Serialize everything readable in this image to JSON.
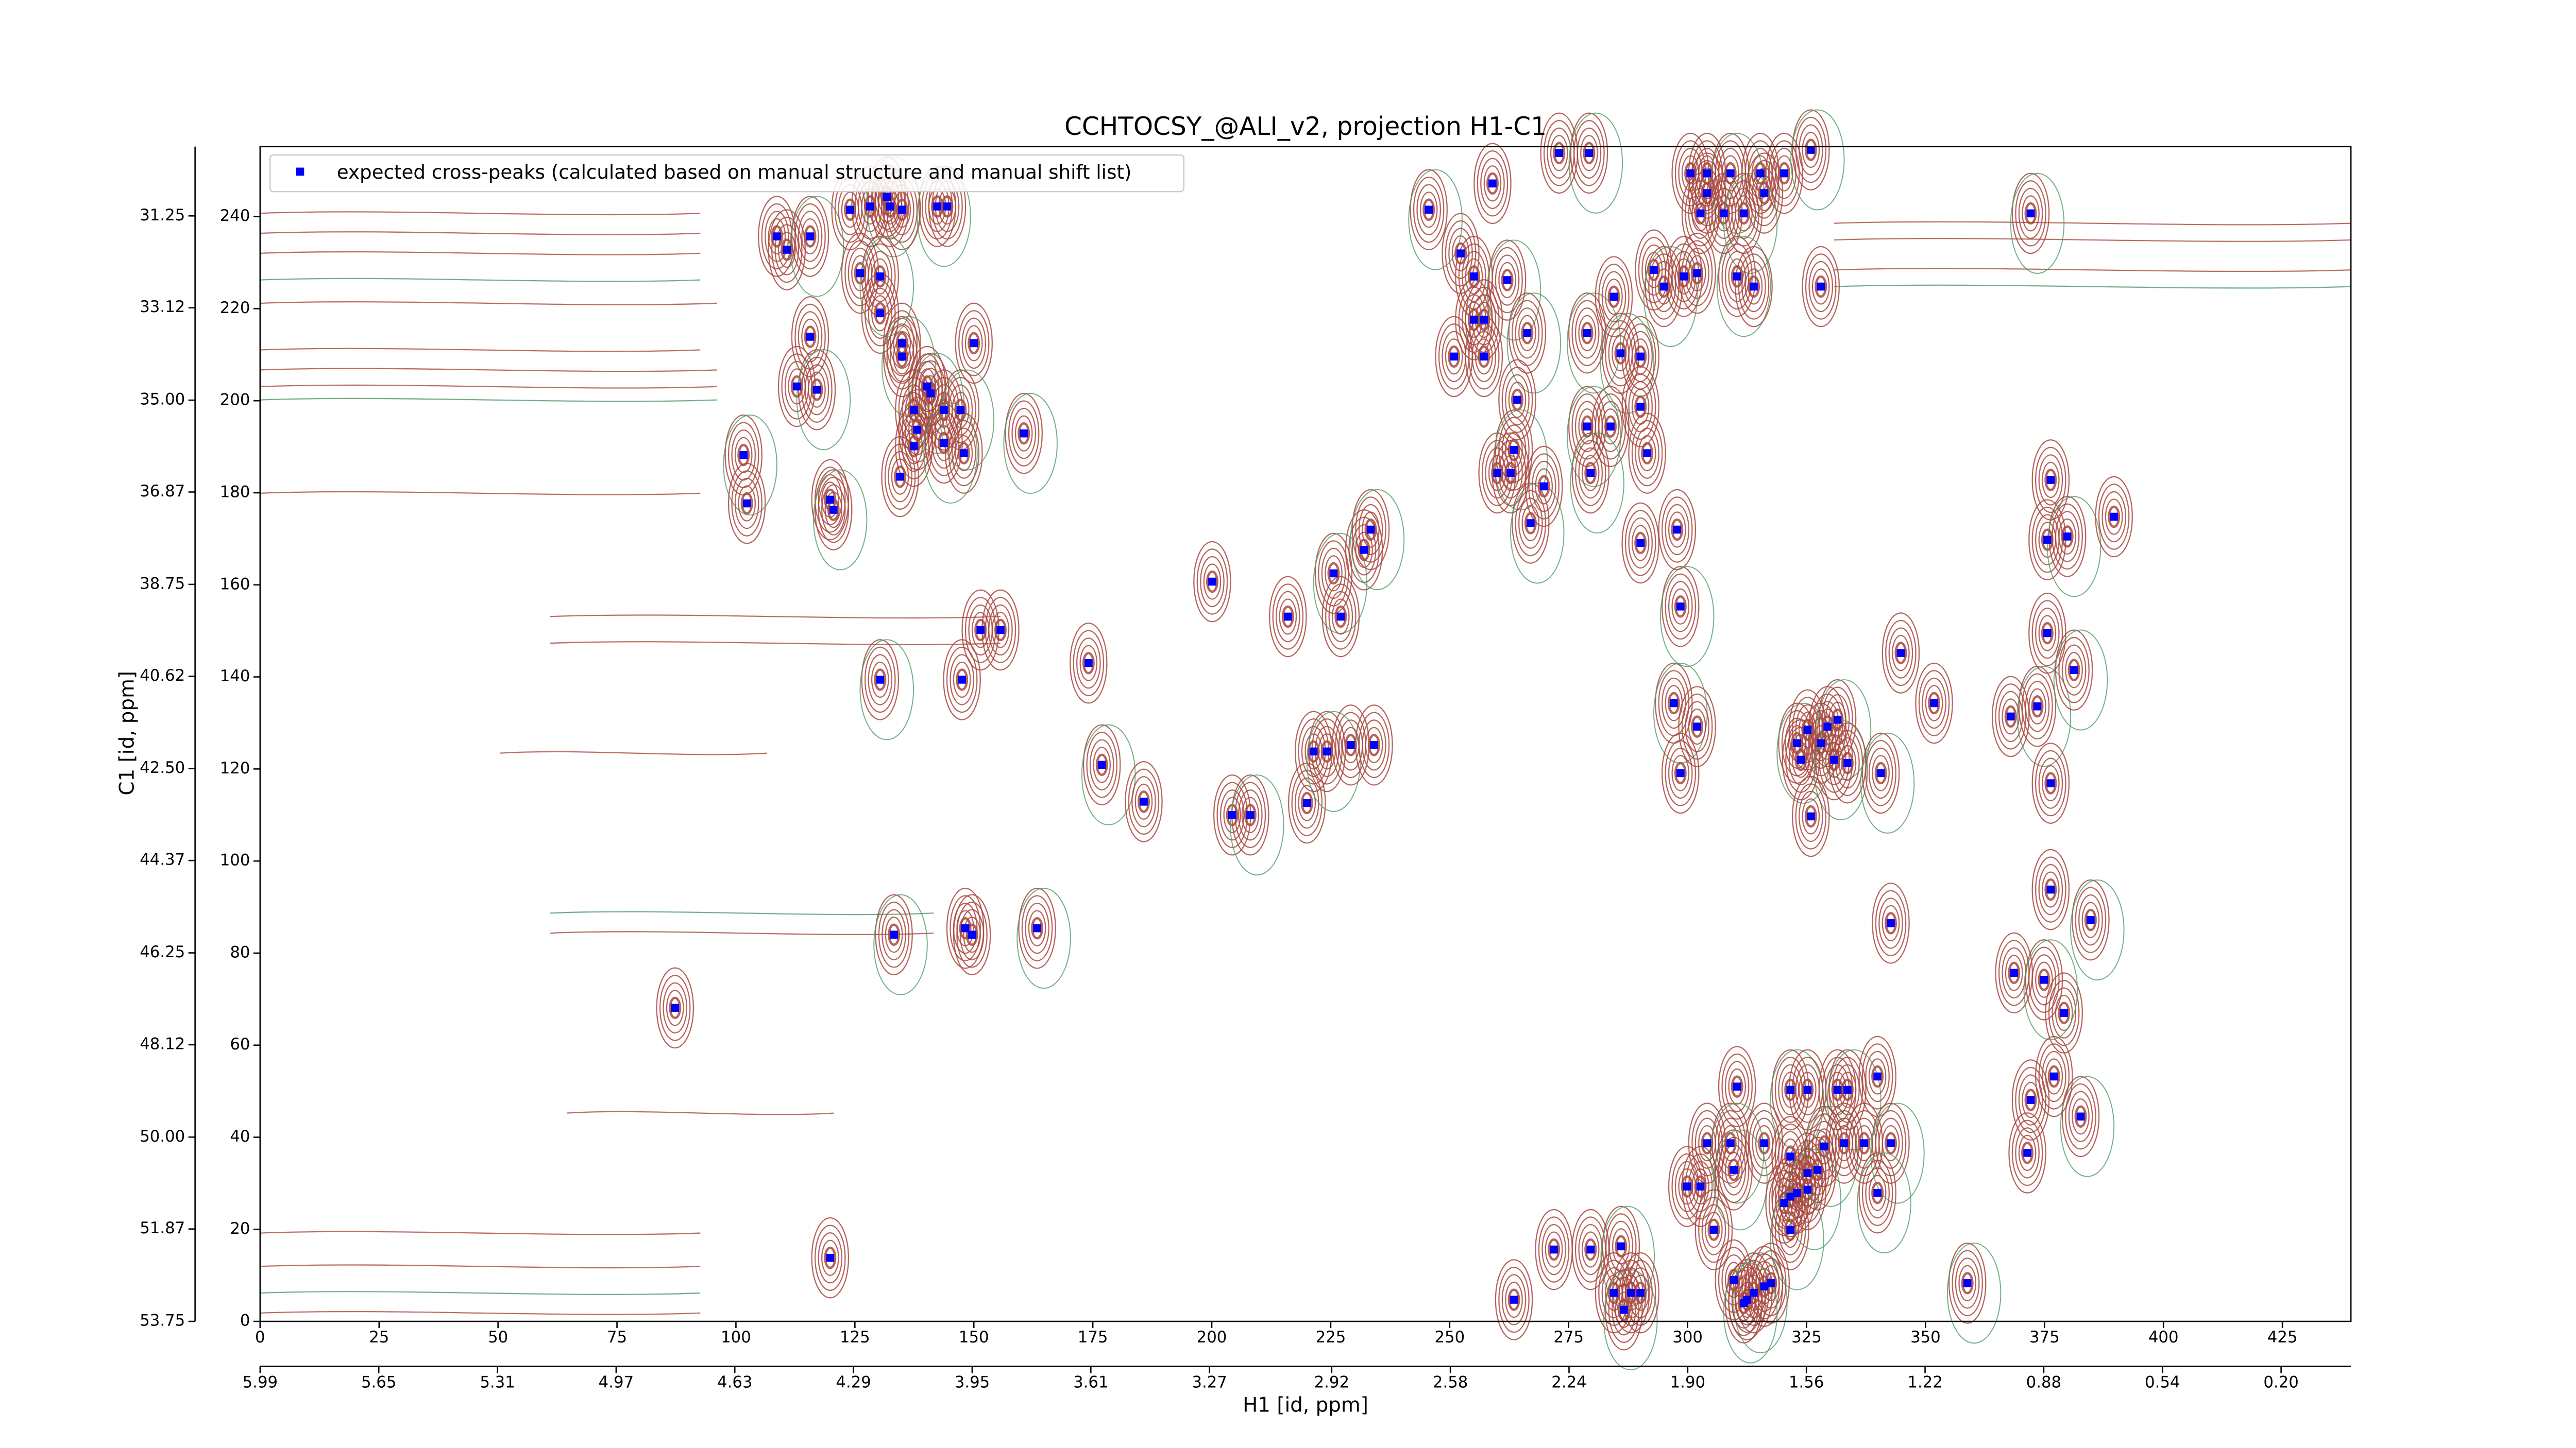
{
  "chart_data": {
    "type": "scatter",
    "title": "CCHTOCSY_@ALI_v2, projection H1-C1",
    "xlabel": "H1 [id, ppm]",
    "ylabel": "C1 [id, ppm]",
    "xlim": [
      0,
      439.4
    ],
    "xticks": [
      0,
      25,
      50,
      75,
      100,
      125,
      150,
      175,
      200,
      225,
      250,
      275,
      300,
      325,
      350,
      375,
      400,
      425
    ],
    "x2lim": [
      5.99,
      0.0
    ],
    "x2ticks": [
      5.99,
      5.65,
      5.31,
      4.97,
      4.63,
      4.29,
      3.95,
      3.61,
      3.27,
      2.92,
      2.58,
      2.24,
      {
        "value": 1.9,
        "label": "1.90"
      },
      1.56,
      1.22,
      0.88,
      0.54,
      {
        "value": 0.2,
        "label": "0.20"
      }
    ],
    "ylim": [
      0,
      255.2
    ],
    "yticks": [
      0,
      20,
      40,
      60,
      80,
      100,
      120,
      140,
      160,
      180,
      200,
      220,
      240
    ],
    "y2lim": [
      53.75,
      29.84
    ],
    "y2ticks": [
      53.75,
      51.87,
      {
        "value": 50,
        "label": "50.00"
      },
      48.12,
      46.25,
      44.37,
      {
        "value": 42.5,
        "label": "42.50"
      },
      40.62,
      38.75,
      36.87,
      {
        "value": 35,
        "label": "35.00"
      },
      33.12,
      31.25
    ],
    "legend": "upper left",
    "contour_colors": [
      "#a8483e",
      "#4f9a68"
    ],
    "series": [
      {
        "name": "expected cross-peaks (calculated based on manual structure and manual shift list)",
        "color": "#0000ff",
        "x": [
          101.6,
          102.3,
          119.8,
          120.5,
          108.6,
          110.7,
          115.6,
          124,
          128.2,
          131.7,
          132.4,
          134.9,
          142.3,
          144.4,
          126.1,
          130.3,
          115.6,
          112.8,
          117,
          130.3,
          134.9,
          134.9,
          150,
          140.2,
          140.9,
          137.4,
          143.7,
          147.2,
          138.1,
          137.4,
          143.7,
          147.9,
          134.5,
          160.5,
          200.1,
          216,
          225.6,
          227.1,
          232,
          233.4,
          151.4,
          155.6,
          130.3,
          147.5,
          174.1,
          176.9,
          185.7,
          204.3,
          208.1,
          220,
          221.4,
          224.2,
          229.2,
          234.1,
          133.2,
          148.2,
          149.6,
          163.3,
          87.2,
          119.8,
          245.6,
          259,
          273,
          279.3,
          300.6,
          304.1,
          309,
          315.3,
          320.3,
          325.9,
          302.7,
          307.6,
          311.8,
          304.1,
          316.1,
          372.1,
          252.3,
          255.1,
          262.1,
          255.1,
          257.2,
          266.3,
          250.9,
          257.2,
          278.9,
          284.5,
          292.9,
          295,
          299.2,
          302,
          310.4,
          313.9,
          328,
          285.9,
          290.1,
          264.2,
          278.9,
          283.8,
          290.1,
          263.5,
          260,
          262.8,
          267,
          269.8,
          291.5,
          279.6,
          290.1,
          297.8,
          298.5,
          344.8,
          351.8,
          297.1,
          302,
          298.5,
          323,
          325.2,
          329.4,
          331.5,
          323.8,
          328,
          330.8,
          333.6,
          325.9,
          340.6,
          342.7,
          367.9,
          373.5,
          375.6,
          376.3,
          381.2,
          376.3,
          375.6,
          379.8,
          389.6,
          376.3,
          384.7,
          379.1,
          368.6,
          374.9,
          372.1,
          371.4,
          382.6,
          377,
          310.4,
          321.6,
          325.2,
          331.5,
          333.6,
          339.9,
          304.1,
          309,
          316.1,
          321.6,
          328.7,
          332.9,
          337.1,
          342.7,
          299.9,
          302.7,
          309.7,
          325.2,
          327.3,
          339.9,
          321.6,
          323,
          325.2,
          320.3,
          305.5,
          321.6,
          309.7,
          312.5,
          313.9,
          316.1,
          317.5,
          311.8,
          271.9,
          279.6,
          286,
          288.1,
          284.5,
          286.6,
          290.1,
          263.5,
          358.8
        ],
        "y": [
          188.2,
          177.7,
          178.5,
          176.3,
          235.7,
          232.8,
          235.7,
          241.5,
          242.2,
          244.3,
          242.2,
          241.5,
          242.2,
          242.2,
          227.7,
          227,
          213.9,
          203.1,
          202.4,
          219,
          212.5,
          209.6,
          212.5,
          203.1,
          201.6,
          198,
          198,
          198,
          193.7,
          190.1,
          190.8,
          188.6,
          183.5,
          192.9,
          160.7,
          153.1,
          162.5,
          153.1,
          167.6,
          172,
          150.2,
          150.2,
          139.4,
          139.4,
          143,
          120.9,
          112.9,
          110,
          110,
          112.6,
          123.8,
          123.8,
          125.2,
          125.2,
          84,
          85.4,
          84,
          85.4,
          68.1,
          13.8,
          241.5,
          247.2,
          253.8,
          253.8,
          249.4,
          249.4,
          249.4,
          249.4,
          249.4,
          254.5,
          240.7,
          240.7,
          240.7,
          245.1,
          245.1,
          240.7,
          232,
          227,
          226.2,
          217.6,
          217.6,
          214.7,
          209.6,
          209.6,
          214.7,
          222.6,
          228.4,
          224.8,
          227,
          227.7,
          227,
          224.8,
          224.8,
          210.3,
          209.6,
          200.2,
          194.4,
          194.4,
          198.7,
          189.3,
          184.3,
          184.3,
          173.4,
          181.4,
          188.6,
          184.3,
          169.1,
          172,
          155.3,
          145.2,
          134.3,
          134.3,
          129.2,
          119.1,
          125.6,
          128.5,
          129.2,
          130.7,
          122,
          125.6,
          122,
          121.3,
          109.7,
          119.1,
          86.5,
          131.4,
          133.6,
          149.5,
          116.9,
          141.5,
          182.8,
          169.8,
          170.5,
          174.8,
          93.8,
          87.2,
          67,
          75.7,
          74.2,
          48.1,
          36.6,
          44.5,
          53.2,
          51,
          50.3,
          50.3,
          50.3,
          50.3,
          53.2,
          38.7,
          38.7,
          38.7,
          35.8,
          38,
          38.7,
          38.7,
          38.7,
          29.3,
          29.3,
          32.9,
          32.2,
          32.9,
          27.9,
          27.1,
          27.9,
          28.6,
          25.7,
          19.9,
          19.9,
          9,
          4.7,
          6.2,
          7.6,
          8.3,
          4,
          15.6,
          15.6,
          16.3,
          6.2,
          6.2,
          2.5,
          6.2,
          4.7,
          8.3
        ]
      }
    ]
  }
}
